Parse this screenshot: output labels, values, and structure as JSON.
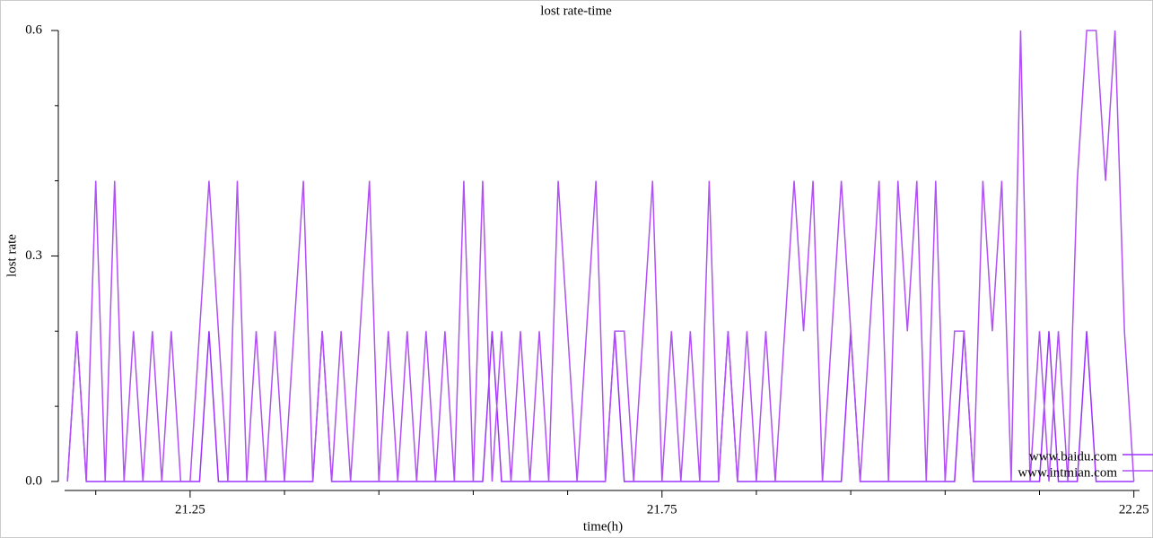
{
  "chart_data": {
    "type": "line",
    "title": "lost rate-time",
    "xlabel": "time(h)",
    "ylabel": "lost rate",
    "xlim": [
      21.117,
      22.256
    ],
    "ylim": [
      -0.012,
      0.6
    ],
    "xticks": [
      21.25,
      21.75,
      22.25
    ],
    "xminor_ticks": [
      21.15,
      21.35,
      21.45,
      21.55,
      21.65,
      21.85,
      21.95,
      22.05,
      22.15
    ],
    "yticks": [
      {
        "value": 0,
        "label": "0.0"
      },
      0.3,
      0.6
    ],
    "yminor_ticks": [
      0.1,
      0.2,
      0.4,
      0.5
    ],
    "legend": "lower right",
    "x": [
      21.12,
      21.13,
      21.14,
      21.15,
      21.16,
      21.17,
      21.18,
      21.19,
      21.2,
      21.21,
      21.22,
      21.23,
      21.24,
      21.25,
      21.26,
      21.27,
      21.28,
      21.29,
      21.3,
      21.31,
      21.32,
      21.33,
      21.34,
      21.35,
      21.36,
      21.37,
      21.38,
      21.39,
      21.4,
      21.41,
      21.42,
      21.43,
      21.44,
      21.45,
      21.46,
      21.47,
      21.48,
      21.49,
      21.5,
      21.51,
      21.52,
      21.53,
      21.54,
      21.55,
      21.56,
      21.57,
      21.58,
      21.59,
      21.6,
      21.61,
      21.62,
      21.63,
      21.64,
      21.65,
      21.66,
      21.67,
      21.68,
      21.69,
      21.7,
      21.71,
      21.72,
      21.73,
      21.74,
      21.75,
      21.76,
      21.77,
      21.78,
      21.79,
      21.8,
      21.81,
      21.82,
      21.83,
      21.84,
      21.85,
      21.86,
      21.87,
      21.88,
      21.89,
      21.9,
      21.91,
      21.92,
      21.93,
      21.94,
      21.95,
      21.96,
      21.97,
      21.98,
      21.99,
      22.0,
      22.01,
      22.02,
      22.03,
      22.04,
      22.05,
      22.06,
      22.07,
      22.08,
      22.09,
      22.1,
      22.11,
      22.12,
      22.13,
      22.14,
      22.15,
      22.16,
      22.17,
      22.18,
      22.19,
      22.2,
      22.21,
      22.22,
      22.23,
      22.24,
      22.25
    ],
    "series": [
      {
        "name": "www.baidu.com",
        "color": "#9b30ff",
        "values": [
          0,
          0.2,
          0,
          0,
          0,
          0,
          0,
          0,
          0,
          0,
          0,
          0,
          0,
          0,
          0,
          0.2,
          0,
          0,
          0,
          0,
          0,
          0,
          0,
          0,
          0,
          0,
          0,
          0.2,
          0,
          0,
          0,
          0,
          0,
          0,
          0,
          0,
          0,
          0,
          0,
          0,
          0,
          0,
          0,
          0,
          0,
          0.2,
          0,
          0,
          0,
          0,
          0,
          0,
          0,
          0,
          0,
          0,
          0,
          0,
          0.2,
          0,
          0,
          0,
          0,
          0,
          0,
          0,
          0,
          0,
          0,
          0,
          0.2,
          0,
          0,
          0,
          0,
          0,
          0,
          0,
          0,
          0,
          0,
          0,
          0,
          0.2,
          0,
          0,
          0,
          0,
          0,
          0,
          0,
          0,
          0,
          0,
          0,
          0.2,
          0,
          0,
          0,
          0,
          0,
          0,
          0,
          0,
          0.2,
          0,
          0,
          0,
          0.2,
          0,
          0,
          0,
          0,
          0
        ]
      },
      {
        "name": "www.intmian.com",
        "color": "#b050f5",
        "values": [
          0,
          0.2,
          0,
          0.4,
          0,
          0.4,
          0,
          0.2,
          0,
          0.2,
          0,
          0.2,
          0,
          0,
          0.2,
          0.4,
          0.2,
          0,
          0.4,
          0,
          0.2,
          0,
          0.2,
          0,
          0.2,
          0.4,
          0,
          0.2,
          0,
          0.2,
          0,
          0.2,
          0.4,
          0,
          0.2,
          0,
          0.2,
          0,
          0.2,
          0,
          0.2,
          0,
          0.4,
          0,
          0.4,
          0,
          0.2,
          0,
          0.2,
          0,
          0.2,
          0,
          0.4,
          0.2,
          0,
          0.2,
          0.4,
          0,
          0.2,
          0.2,
          0,
          0.2,
          0.4,
          0,
          0.2,
          0,
          0.2,
          0,
          0.4,
          0,
          0.2,
          0,
          0.2,
          0,
          0.2,
          0,
          0.2,
          0.4,
          0.2,
          0.4,
          0,
          0.2,
          0.4,
          0.2,
          0,
          0.2,
          0.4,
          0,
          0.4,
          0.2,
          0.4,
          0,
          0.4,
          0,
          0.2,
          0.2,
          0,
          0.4,
          0.2,
          0.4,
          0,
          0.6,
          0,
          0.2,
          0,
          0.2,
          0,
          0.4,
          0.6,
          0.6,
          0.4,
          0.6,
          0.2,
          0
        ]
      }
    ]
  }
}
